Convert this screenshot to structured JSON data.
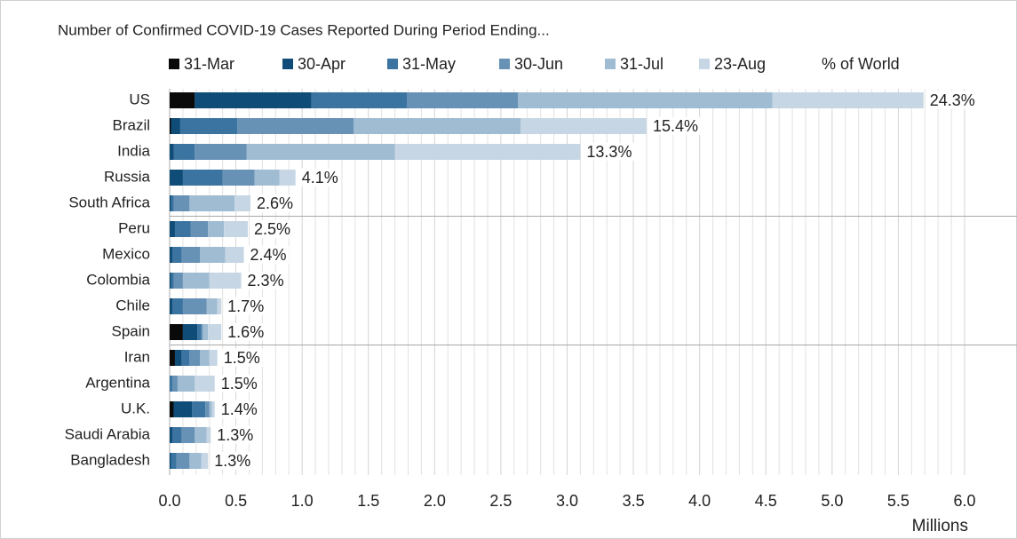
{
  "chart_data": {
    "type": "stacked-barh",
    "title": "Number of Confirmed COVID-19 Cases Reported During Period Ending...",
    "x_label": "Millions",
    "categories": [
      "US",
      "Brazil",
      "India",
      "Russia",
      "South Africa",
      "Peru",
      "Mexico",
      "Colombia",
      "Chile",
      "Spain",
      "Iran",
      "Argentina",
      "U.K.",
      "Saudi Arabia",
      "Bangladesh"
    ],
    "series": [
      {
        "name": "31-Mar",
        "color": "#0a0a0a",
        "values": [
          0.19,
          0.01,
          0.0,
          0.0,
          0.0,
          0.0,
          0.0,
          0.0,
          0.0,
          0.1,
          0.04,
          0.0,
          0.03,
          0.0,
          0.0
        ]
      },
      {
        "name": "30-Apr",
        "color": "#0f4c78",
        "values": [
          0.88,
          0.07,
          0.03,
          0.1,
          0.01,
          0.04,
          0.02,
          0.01,
          0.02,
          0.11,
          0.05,
          0.0,
          0.14,
          0.02,
          0.01
        ]
      },
      {
        "name": "31-May",
        "color": "#3b74a0",
        "values": [
          0.72,
          0.43,
          0.16,
          0.3,
          0.02,
          0.12,
          0.07,
          0.02,
          0.08,
          0.03,
          0.06,
          0.02,
          0.1,
          0.07,
          0.04
        ]
      },
      {
        "name": "30-Jun",
        "color": "#6891b6",
        "values": [
          0.84,
          0.88,
          0.39,
          0.24,
          0.12,
          0.13,
          0.14,
          0.07,
          0.18,
          0.01,
          0.08,
          0.04,
          0.03,
          0.1,
          0.1
        ]
      },
      {
        "name": "31-Jul",
        "color": "#9fbcd3",
        "values": [
          1.92,
          1.26,
          1.12,
          0.19,
          0.34,
          0.12,
          0.19,
          0.2,
          0.08,
          0.04,
          0.07,
          0.13,
          0.02,
          0.09,
          0.09
        ]
      },
      {
        "name": "23-Aug",
        "color": "#c6d6e4",
        "values": [
          1.14,
          0.95,
          1.4,
          0.12,
          0.12,
          0.18,
          0.14,
          0.24,
          0.03,
          0.1,
          0.06,
          0.15,
          0.02,
          0.03,
          0.05
        ]
      }
    ],
    "world_share": {
      "name": "% of World",
      "values": [
        24.3,
        15.4,
        13.3,
        4.1,
        2.6,
        2.5,
        2.4,
        2.3,
        1.7,
        1.6,
        1.5,
        1.5,
        1.4,
        1.3,
        1.3
      ],
      "value_labels": [
        "24.3%",
        "15.4%",
        "13.3%",
        "4.1%",
        "2.6%",
        "2.5%",
        "2.4%",
        "2.3%",
        "1.7%",
        "1.6%",
        "1.5%",
        "1.5%",
        "1.4%",
        "1.3%",
        "1.3%"
      ]
    },
    "xlim": [
      0,
      6
    ],
    "xticks": [
      {
        "value": 0,
        "label": "0.0"
      },
      {
        "value": 0.5,
        "label": "0.5"
      },
      {
        "value": 1,
        "label": "1.0"
      },
      {
        "value": 1.5,
        "label": "1.5"
      },
      {
        "value": 2,
        "label": "2.0"
      },
      {
        "value": 2.5,
        "label": "2.5"
      },
      {
        "value": 3,
        "label": "3.0"
      },
      {
        "value": 3.5,
        "label": "3.5"
      },
      {
        "value": 4,
        "label": "4.0"
      },
      {
        "value": 4.5,
        "label": "4.5"
      },
      {
        "value": 5,
        "label": "5.0"
      },
      {
        "value": 5.5,
        "label": "5.5"
      },
      {
        "value": 6,
        "label": "6.0"
      }
    ],
    "grid": true
  }
}
